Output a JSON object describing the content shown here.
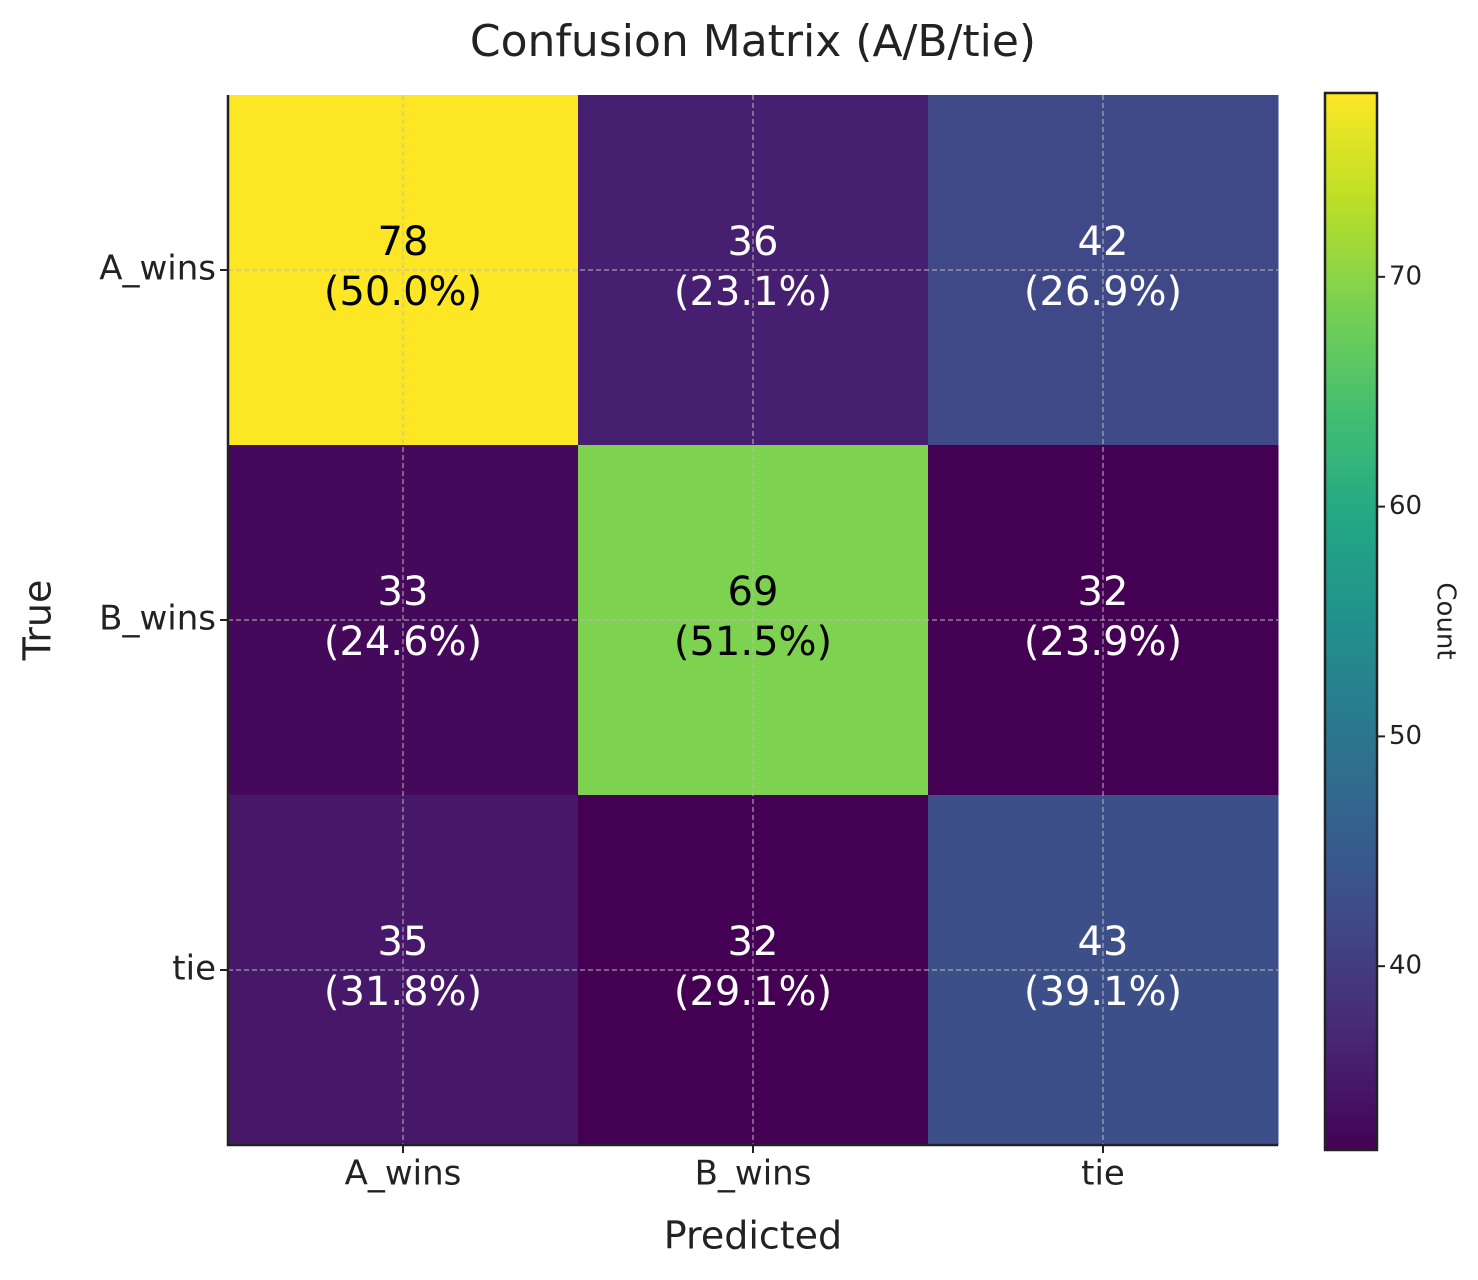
{
  "chart_data": {
    "type": "heatmap",
    "title": "Confusion Matrix (A/B/tie)",
    "xlabel": "Predicted",
    "ylabel": "True",
    "x_categories": [
      "A_wins",
      "B_wins",
      "tie"
    ],
    "y_categories": [
      "A_wins",
      "B_wins",
      "tie"
    ],
    "values": [
      [
        78,
        36,
        42
      ],
      [
        33,
        69,
        32
      ],
      [
        35,
        32,
        43
      ]
    ],
    "percent_labels": [
      [
        "(50.0%)",
        "(23.1%)",
        "(26.9%)"
      ],
      [
        "(24.6%)",
        "(51.5%)",
        "(23.9%)"
      ],
      [
        "(31.8%)",
        "(29.1%)",
        "(39.1%)"
      ]
    ],
    "colormap": "viridis",
    "clim": [
      32,
      78
    ],
    "colorbar_label": "Count",
    "colorbar_ticks": [
      40,
      50,
      60,
      70
    ],
    "grid": true
  }
}
